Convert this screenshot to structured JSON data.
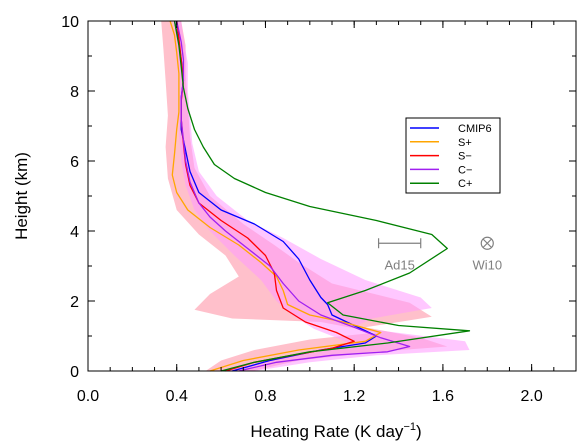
{
  "chart_data": {
    "type": "line",
    "xlabel": "Heating Rate (K day",
    "xlabel_sup": "−1",
    "xlabel_close": ")",
    "ylabel": "Height (km)",
    "xlim": [
      0.0,
      2.2
    ],
    "ylim": [
      0,
      10
    ],
    "xticks": [
      0.0,
      0.4,
      0.8,
      1.2,
      1.6,
      2.0
    ],
    "xtick_labels": [
      "0.0",
      "0.4",
      "0.8",
      "1.2",
      "1.6",
      "2.0"
    ],
    "yticks": [
      0,
      2,
      4,
      6,
      8,
      10
    ],
    "ytick_labels": [
      "0",
      "2",
      "4",
      "6",
      "8",
      "10"
    ],
    "legend_placement": "center-right",
    "series": [
      {
        "name": "CMIP6",
        "color": "#0000ff",
        "points": [
          [
            0.65,
            0
          ],
          [
            0.82,
            0.3
          ],
          [
            1.05,
            0.6
          ],
          [
            1.25,
            0.8
          ],
          [
            1.3,
            1.0
          ],
          [
            1.2,
            1.3
          ],
          [
            1.1,
            1.6
          ],
          [
            1.08,
            1.9
          ],
          [
            1.05,
            2.1
          ],
          [
            1.0,
            2.6
          ],
          [
            0.95,
            3.2
          ],
          [
            0.88,
            3.7
          ],
          [
            0.75,
            4.2
          ],
          [
            0.6,
            4.6
          ],
          [
            0.5,
            5.1
          ],
          [
            0.46,
            5.7
          ],
          [
            0.44,
            6.3
          ],
          [
            0.42,
            6.9
          ],
          [
            0.42,
            7.4
          ],
          [
            0.42,
            7.8
          ],
          [
            0.43,
            8.3
          ],
          [
            0.42,
            8.9
          ],
          [
            0.41,
            9.4
          ],
          [
            0.39,
            10
          ]
        ]
      },
      {
        "name": "S+",
        "color": "#ffa500",
        "points": [
          [
            0.55,
            0
          ],
          [
            0.7,
            0.3
          ],
          [
            0.95,
            0.6
          ],
          [
            1.25,
            0.85
          ],
          [
            1.32,
            1.1
          ],
          [
            1.15,
            1.4
          ],
          [
            1.0,
            1.6
          ],
          [
            0.9,
            1.9
          ],
          [
            0.88,
            2.3
          ],
          [
            0.85,
            2.7
          ],
          [
            0.78,
            3.1
          ],
          [
            0.68,
            3.6
          ],
          [
            0.55,
            4.1
          ],
          [
            0.45,
            4.6
          ],
          [
            0.4,
            5.1
          ],
          [
            0.38,
            5.6
          ],
          [
            0.39,
            6.2
          ],
          [
            0.4,
            6.9
          ],
          [
            0.41,
            7.4
          ],
          [
            0.41,
            7.9
          ],
          [
            0.41,
            8.5
          ],
          [
            0.4,
            9.1
          ],
          [
            0.39,
            9.6
          ],
          [
            0.37,
            10
          ]
        ]
      },
      {
        "name": "S−",
        "color": "#ff0000",
        "points": [
          [
            0.62,
            0
          ],
          [
            0.75,
            0.25
          ],
          [
            0.92,
            0.45
          ],
          [
            1.1,
            0.65
          ],
          [
            1.2,
            0.85
          ],
          [
            1.12,
            1.1
          ],
          [
            0.98,
            1.4
          ],
          [
            0.88,
            1.8
          ],
          [
            0.85,
            2.3
          ],
          [
            0.84,
            2.8
          ],
          [
            0.8,
            3.3
          ],
          [
            0.72,
            3.8
          ],
          [
            0.6,
            4.3
          ],
          [
            0.5,
            4.8
          ],
          [
            0.46,
            5.3
          ],
          [
            0.44,
            5.9
          ],
          [
            0.43,
            6.5
          ],
          [
            0.42,
            7.2
          ],
          [
            0.42,
            7.7
          ],
          [
            0.43,
            8.3
          ],
          [
            0.42,
            8.9
          ],
          [
            0.41,
            9.5
          ],
          [
            0.4,
            10
          ]
        ]
      },
      {
        "name": "C−",
        "color": "#a020f0",
        "points": [
          [
            0.68,
            0
          ],
          [
            0.85,
            0.25
          ],
          [
            1.1,
            0.45
          ],
          [
            1.35,
            0.55
          ],
          [
            1.45,
            0.7
          ],
          [
            1.32,
            0.95
          ],
          [
            1.2,
            1.25
          ],
          [
            1.05,
            1.6
          ],
          [
            0.95,
            2.0
          ],
          [
            0.88,
            2.5
          ],
          [
            0.82,
            3.0
          ],
          [
            0.72,
            3.5
          ],
          [
            0.62,
            4.0
          ],
          [
            0.55,
            4.4
          ],
          [
            0.5,
            4.8
          ],
          [
            0.46,
            5.4
          ],
          [
            0.44,
            6.0
          ],
          [
            0.43,
            6.6
          ],
          [
            0.42,
            7.2
          ],
          [
            0.42,
            7.8
          ],
          [
            0.43,
            8.3
          ],
          [
            0.43,
            8.9
          ],
          [
            0.42,
            9.4
          ],
          [
            0.4,
            10
          ]
        ]
      },
      {
        "name": "C+",
        "color": "#008000",
        "points": [
          [
            0.6,
            0
          ],
          [
            0.75,
            0.25
          ],
          [
            1.0,
            0.55
          ],
          [
            1.35,
            0.8
          ],
          [
            1.72,
            1.15
          ],
          [
            1.4,
            1.3
          ],
          [
            1.15,
            1.6
          ],
          [
            1.08,
            1.95
          ],
          [
            1.25,
            2.3
          ],
          [
            1.45,
            2.8
          ],
          [
            1.62,
            3.5
          ],
          [
            1.55,
            3.9
          ],
          [
            1.3,
            4.3
          ],
          [
            1.0,
            4.7
          ],
          [
            0.8,
            5.1
          ],
          [
            0.66,
            5.5
          ],
          [
            0.57,
            5.9
          ],
          [
            0.52,
            6.4
          ],
          [
            0.48,
            6.9
          ],
          [
            0.45,
            7.5
          ],
          [
            0.43,
            8.1
          ],
          [
            0.42,
            8.7
          ],
          [
            0.41,
            9.3
          ],
          [
            0.39,
            10
          ]
        ]
      }
    ],
    "bands": [
      {
        "color": "#ffc0cb",
        "left": [
          [
            0.53,
            0
          ],
          [
            0.6,
            0.3
          ],
          [
            0.75,
            0.6
          ],
          [
            1.0,
            0.9
          ],
          [
            1.3,
            1.1
          ],
          [
            1.05,
            1.4
          ],
          [
            0.65,
            1.5
          ],
          [
            0.48,
            1.75
          ],
          [
            0.55,
            2.2
          ],
          [
            0.68,
            2.7
          ],
          [
            0.62,
            3.3
          ],
          [
            0.5,
            3.9
          ],
          [
            0.4,
            4.6
          ],
          [
            0.36,
            5.5
          ],
          [
            0.35,
            6.4
          ],
          [
            0.36,
            7.3
          ],
          [
            0.35,
            8.3
          ],
          [
            0.34,
            9.2
          ],
          [
            0.33,
            10
          ]
        ],
        "right": [
          [
            0.74,
            0
          ],
          [
            0.95,
            0.3
          ],
          [
            1.3,
            0.55
          ],
          [
            1.62,
            0.7
          ],
          [
            1.5,
            0.95
          ],
          [
            1.25,
            1.25
          ],
          [
            1.55,
            1.55
          ],
          [
            1.45,
            1.95
          ],
          [
            1.1,
            2.5
          ],
          [
            0.95,
            3.1
          ],
          [
            0.84,
            3.6
          ],
          [
            0.7,
            4.2
          ],
          [
            0.55,
            5.0
          ],
          [
            0.48,
            5.8
          ],
          [
            0.46,
            6.7
          ],
          [
            0.45,
            7.6
          ],
          [
            0.44,
            8.5
          ],
          [
            0.44,
            9.3
          ],
          [
            0.42,
            10
          ]
        ]
      },
      {
        "color": "#ff99ff",
        "opacity": 0.55,
        "left": [
          [
            0.62,
            0
          ],
          [
            0.8,
            0.3
          ],
          [
            1.05,
            0.55
          ],
          [
            1.18,
            0.8
          ],
          [
            1.02,
            1.2
          ],
          [
            0.92,
            1.6
          ],
          [
            0.85,
            2.0
          ],
          [
            0.78,
            2.6
          ],
          [
            0.66,
            3.3
          ],
          [
            0.55,
            4.0
          ],
          [
            0.48,
            4.6
          ],
          [
            0.44,
            5.3
          ],
          [
            0.42,
            6.0
          ],
          [
            0.41,
            6.8
          ],
          [
            0.41,
            7.6
          ],
          [
            0.41,
            8.4
          ],
          [
            0.4,
            9.2
          ],
          [
            0.39,
            10
          ]
        ],
        "right": [
          [
            0.75,
            0
          ],
          [
            1.0,
            0.25
          ],
          [
            1.3,
            0.45
          ],
          [
            1.72,
            0.6
          ],
          [
            1.7,
            0.85
          ],
          [
            1.45,
            1.05
          ],
          [
            1.2,
            1.25
          ],
          [
            1.28,
            1.5
          ],
          [
            1.55,
            1.8
          ],
          [
            1.5,
            2.1
          ],
          [
            1.25,
            2.6
          ],
          [
            1.05,
            3.2
          ],
          [
            0.88,
            3.8
          ],
          [
            0.72,
            4.3
          ],
          [
            0.58,
            5.0
          ],
          [
            0.5,
            5.7
          ],
          [
            0.47,
            6.5
          ],
          [
            0.46,
            7.3
          ],
          [
            0.45,
            8.0
          ],
          [
            0.45,
            8.8
          ],
          [
            0.43,
            9.5
          ],
          [
            0.42,
            10
          ]
        ]
      }
    ],
    "annotations": {
      "ad15": {
        "label": "Ad15",
        "x_min": 1.31,
        "x_max": 1.5,
        "y": 3.65,
        "color": "#808080"
      },
      "wi10": {
        "label": "Wi10",
        "x": 1.8,
        "y": 3.65,
        "color": "#808080"
      }
    }
  }
}
